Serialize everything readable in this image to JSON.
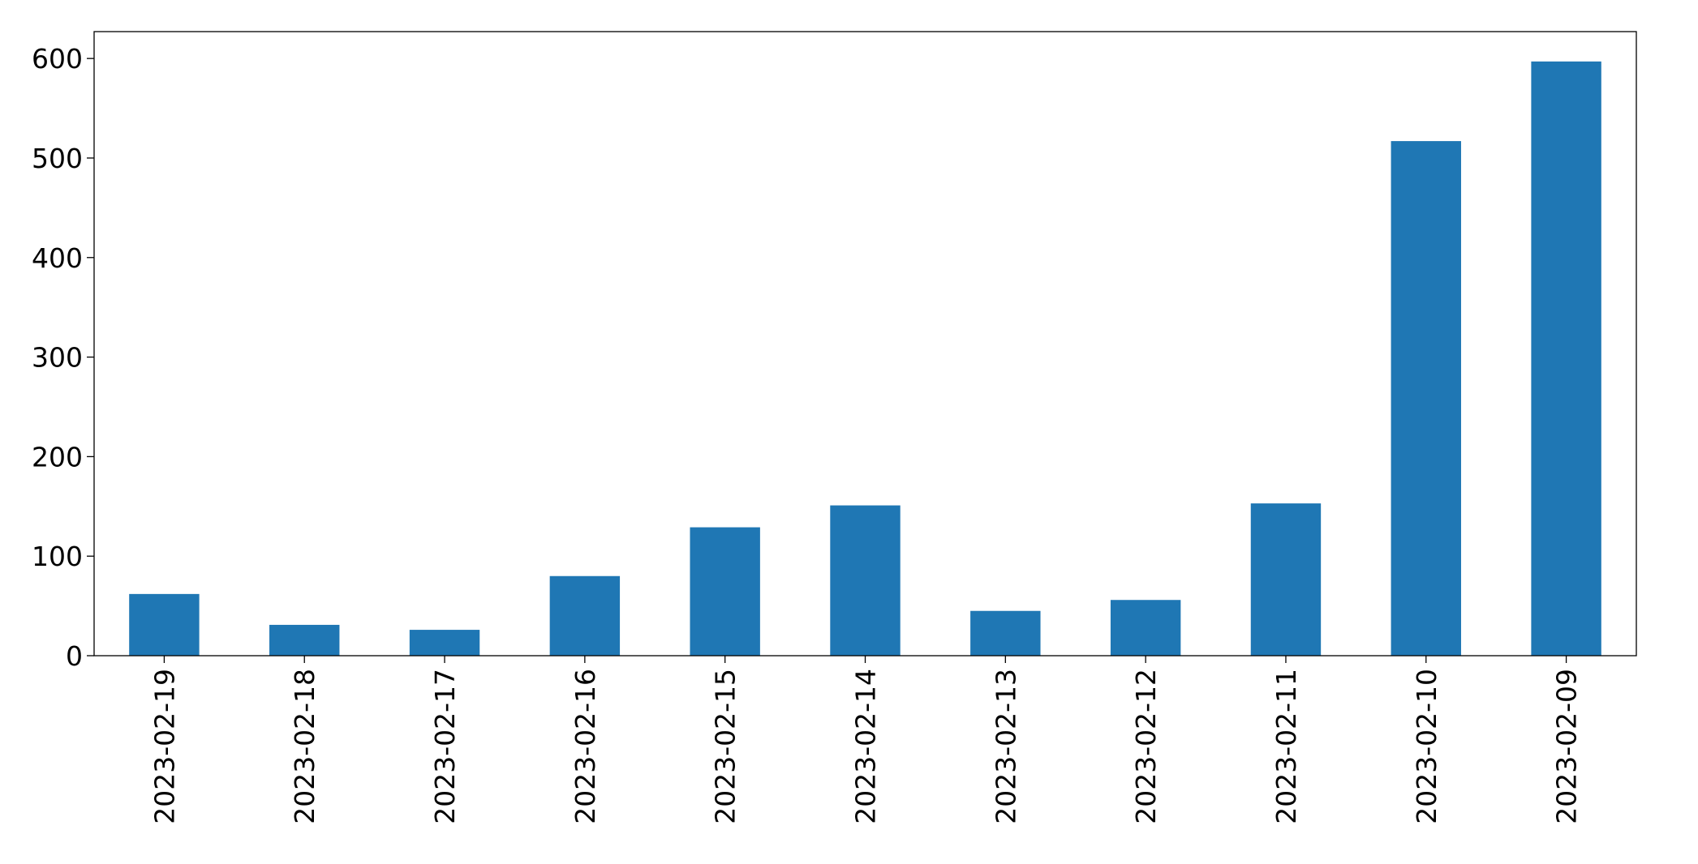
{
  "chart_data": {
    "type": "bar",
    "categories": [
      "2023-02-19",
      "2023-02-18",
      "2023-02-17",
      "2023-02-16",
      "2023-02-15",
      "2023-02-14",
      "2023-02-13",
      "2023-02-12",
      "2023-02-11",
      "2023-02-10",
      "2023-02-09"
    ],
    "values": [
      62,
      31,
      26,
      80,
      129,
      151,
      45,
      56,
      153,
      517,
      597
    ],
    "ylim": [
      0,
      627
    ],
    "yticks": [
      0,
      100,
      200,
      300,
      400,
      500,
      600
    ],
    "title": "",
    "xlabel": "",
    "ylabel": "",
    "grid": false,
    "bar_color": "#1f77b4"
  }
}
